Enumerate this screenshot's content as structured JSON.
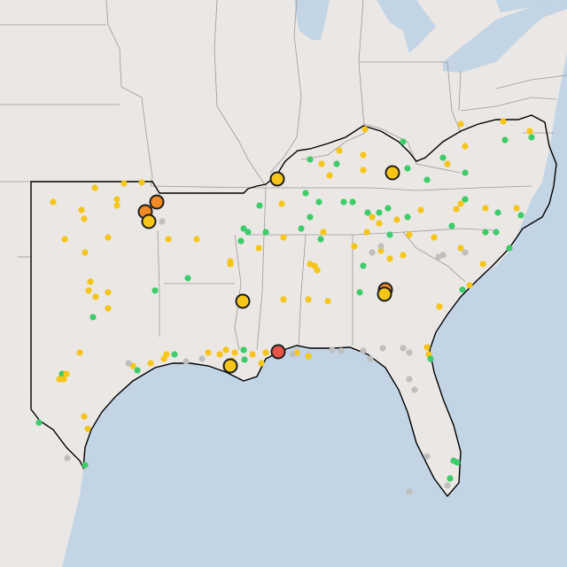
{
  "map": {
    "colors": {
      "water": "#c3d4e4",
      "land": "#ebe7e4",
      "border": "#9a9a9a",
      "region_outline": "#000000",
      "marker_outline": "#1f1f1f"
    },
    "marker_levels": {
      "green": "#3ecc6a",
      "yellow": "#f5c518",
      "orange": "#f08a24",
      "red": "#e8544a",
      "gray": "#bfbfbf"
    }
  }
}
